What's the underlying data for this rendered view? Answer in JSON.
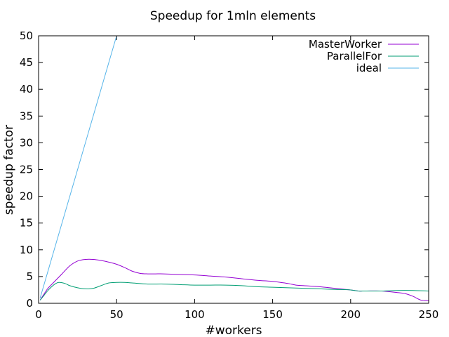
{
  "chart_data": {
    "type": "line",
    "title": "Speedup for 1mln elements",
    "xlabel": "#workers",
    "ylabel": "speedup factor",
    "xlim": [
      0,
      250
    ],
    "ylim": [
      0,
      50
    ],
    "xticks": [
      0,
      50,
      100,
      150,
      200,
      250
    ],
    "yticks": [
      0,
      5,
      10,
      15,
      20,
      25,
      30,
      35,
      40,
      45,
      50
    ],
    "grid": false,
    "legend_position": "top-right",
    "series": [
      {
        "name": "MasterWorker",
        "color": "#9400d3",
        "x": [
          1,
          3,
          6,
          10,
          15,
          20,
          25,
          30,
          35,
          40,
          45,
          50,
          55,
          60,
          65,
          70,
          75,
          80,
          90,
          100,
          110,
          120,
          130,
          140,
          150,
          155,
          160,
          165,
          170,
          180,
          190,
          200,
          205,
          210,
          220,
          230,
          235,
          240,
          245,
          250
        ],
        "y": [
          0.6,
          1.5,
          2.8,
          4.0,
          5.5,
          7.0,
          7.9,
          8.2,
          8.2,
          8.0,
          7.7,
          7.3,
          6.7,
          6.0,
          5.6,
          5.5,
          5.5,
          5.5,
          5.4,
          5.3,
          5.1,
          4.9,
          4.6,
          4.3,
          4.1,
          3.9,
          3.7,
          3.4,
          3.3,
          3.1,
          2.8,
          2.5,
          2.3,
          2.3,
          2.3,
          2.0,
          1.8,
          1.3,
          0.6,
          0.5
        ]
      },
      {
        "name": "ParallelFor",
        "color": "#009e73",
        "x": [
          1,
          3,
          6,
          10,
          13,
          17,
          20,
          25,
          30,
          35,
          40,
          45,
          50,
          55,
          60,
          70,
          80,
          90,
          100,
          110,
          120,
          130,
          140,
          150,
          160,
          170,
          180,
          190,
          200,
          205,
          210,
          220,
          230,
          240,
          250
        ],
        "y": [
          0.6,
          1.3,
          2.4,
          3.5,
          3.9,
          3.7,
          3.3,
          2.9,
          2.7,
          2.8,
          3.3,
          3.8,
          3.9,
          3.9,
          3.8,
          3.6,
          3.6,
          3.5,
          3.4,
          3.4,
          3.4,
          3.3,
          3.1,
          3.0,
          2.9,
          2.8,
          2.7,
          2.6,
          2.5,
          2.3,
          2.3,
          2.3,
          2.4,
          2.4,
          2.3
        ]
      },
      {
        "name": "ideal",
        "color": "#56b4e9",
        "x": [
          1,
          49.8
        ],
        "y": [
          1,
          49.8
        ]
      }
    ]
  }
}
